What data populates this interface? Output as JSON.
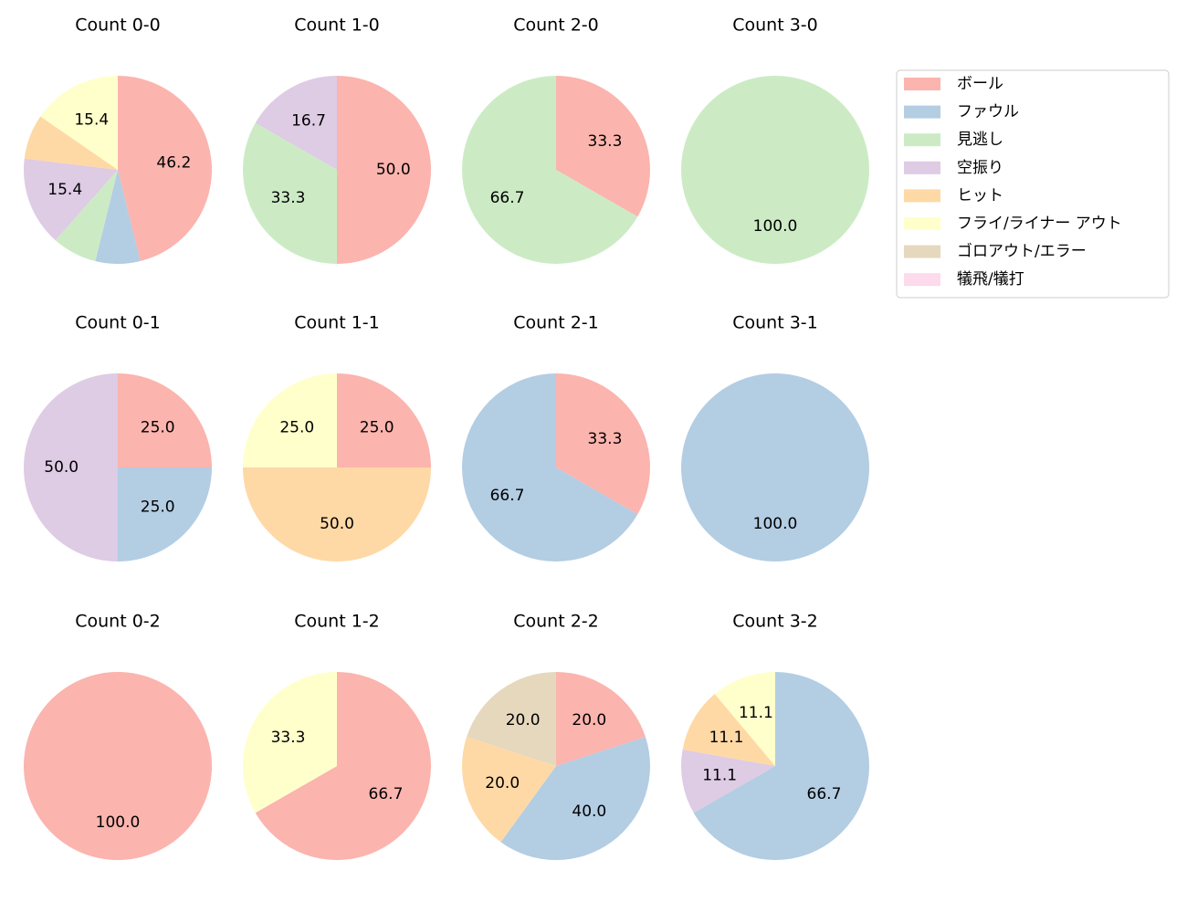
{
  "legend": {
    "position": "upper right",
    "entries": [
      {
        "name": "ボール",
        "color": "#fbb4ae"
      },
      {
        "name": "ファウル",
        "color": "#b3cde3"
      },
      {
        "name": "見逃し",
        "color": "#ccebc5"
      },
      {
        "name": "空振り",
        "color": "#decbe4"
      },
      {
        "name": "ヒット",
        "color": "#fed9a6"
      },
      {
        "name": "フライ/ライナー アウト",
        "color": "#ffffcc"
      },
      {
        "name": "ゴロアウト/エラー",
        "color": "#e5d8bd"
      },
      {
        "name": "犠飛/犠打",
        "color": "#fddaec"
      }
    ]
  },
  "chart_data": [
    {
      "type": "pie",
      "title": "Count 0-0",
      "categories": [
        "ボール",
        "ファウル",
        "見逃し",
        "空振り",
        "ヒット",
        "フライ/ライナー アウト"
      ],
      "values": [
        46.2,
        7.7,
        7.7,
        15.4,
        7.7,
        15.4
      ],
      "value_labels": [
        "46.2",
        null,
        null,
        "15.4",
        null,
        "15.4"
      ]
    },
    {
      "type": "pie",
      "title": "Count 1-0",
      "categories": [
        "ボール",
        "見逃し",
        "空振り"
      ],
      "values": [
        50,
        33.3,
        16.7
      ],
      "value_labels": [
        "50.0",
        "33.3",
        "16.7"
      ]
    },
    {
      "type": "pie",
      "title": "Count 2-0",
      "categories": [
        "ボール",
        "見逃し"
      ],
      "values": [
        33.3,
        66.7
      ],
      "value_labels": [
        "33.3",
        "66.7"
      ]
    },
    {
      "type": "pie",
      "title": "Count 3-0",
      "categories": [
        "見逃し"
      ],
      "values": [
        100
      ],
      "value_labels": [
        "100.0"
      ]
    },
    {
      "type": "pie",
      "title": "Count 0-1",
      "categories": [
        "ボール",
        "ファウル",
        "空振り"
      ],
      "values": [
        25,
        25,
        50
      ],
      "value_labels": [
        "25.0",
        "25.0",
        "50.0"
      ]
    },
    {
      "type": "pie",
      "title": "Count 1-1",
      "categories": [
        "ボール",
        "ヒット",
        "フライ/ライナー アウト"
      ],
      "values": [
        25,
        50,
        25
      ],
      "value_labels": [
        "25.0",
        "50.0",
        "25.0"
      ]
    },
    {
      "type": "pie",
      "title": "Count 2-1",
      "categories": [
        "ボール",
        "ファウル"
      ],
      "values": [
        33.3,
        66.7
      ],
      "value_labels": [
        "33.3",
        "66.7"
      ]
    },
    {
      "type": "pie",
      "title": "Count 3-1",
      "categories": [
        "ファウル"
      ],
      "values": [
        100
      ],
      "value_labels": [
        "100.0"
      ]
    },
    {
      "type": "pie",
      "title": "Count 0-2",
      "categories": [
        "ボール"
      ],
      "values": [
        100
      ],
      "value_labels": [
        "100.0"
      ]
    },
    {
      "type": "pie",
      "title": "Count 1-2",
      "categories": [
        "ボール",
        "フライ/ライナー アウト"
      ],
      "values": [
        66.7,
        33.3
      ],
      "value_labels": [
        "66.7",
        "33.3"
      ]
    },
    {
      "type": "pie",
      "title": "Count 2-2",
      "categories": [
        "ボール",
        "ファウル",
        "ヒット",
        "ゴロアウト/エラー"
      ],
      "values": [
        20,
        40,
        20,
        20
      ],
      "value_labels": [
        "20.0",
        "40.0",
        "20.0",
        "20.0"
      ]
    },
    {
      "type": "pie",
      "title": "Count 3-2",
      "categories": [
        "ファウル",
        "空振り",
        "ヒット",
        "フライ/ライナー アウト"
      ],
      "values": [
        66.7,
        11.1,
        11.1,
        11.1
      ],
      "value_labels": [
        "66.7",
        "11.1",
        "11.1",
        "11.1"
      ]
    }
  ]
}
